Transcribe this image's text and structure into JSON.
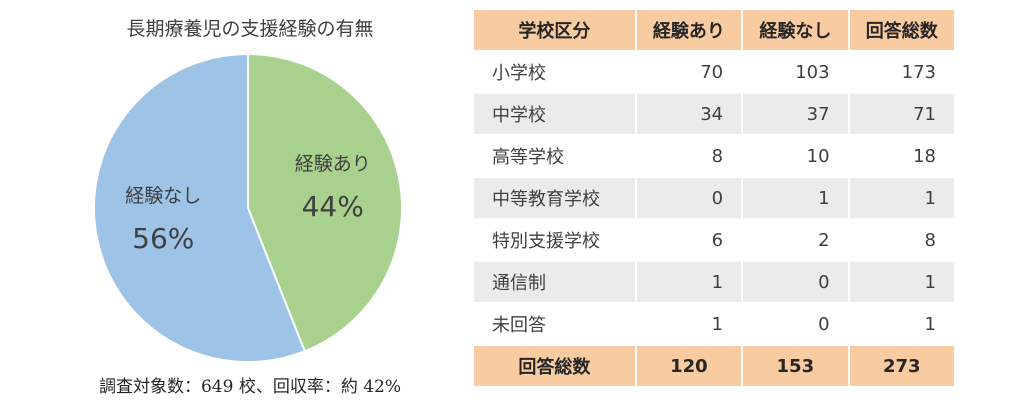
{
  "chart_data": [
    {
      "type": "pie",
      "title": "長期療養児の支援経験の有無",
      "note": "調査対象数：649 校、回収率：約 42%",
      "slices": [
        {
          "label": "経験あり",
          "value": 44,
          "value_label": "44%",
          "color": "#a9d18e"
        },
        {
          "label": "経験なし",
          "value": 56,
          "value_label": "56%",
          "color": "#9dc3e6"
        }
      ]
    },
    {
      "type": "table",
      "columns": [
        "学校区分",
        "経験あり",
        "経験なし",
        "回答総数"
      ],
      "rows": [
        [
          "小学校",
          "70",
          "103",
          "173"
        ],
        [
          "中学校",
          "34",
          "37",
          "71"
        ],
        [
          "高等学校",
          "8",
          "10",
          "18"
        ],
        [
          "中等教育学校",
          "0",
          "1",
          "1"
        ],
        [
          "特別支援学校",
          "6",
          "2",
          "8"
        ],
        [
          "通信制",
          "1",
          "0",
          "1"
        ],
        [
          "未回答",
          "1",
          "0",
          "1"
        ]
      ],
      "total_row": [
        "回答総数",
        "120",
        "153",
        "273"
      ]
    }
  ]
}
